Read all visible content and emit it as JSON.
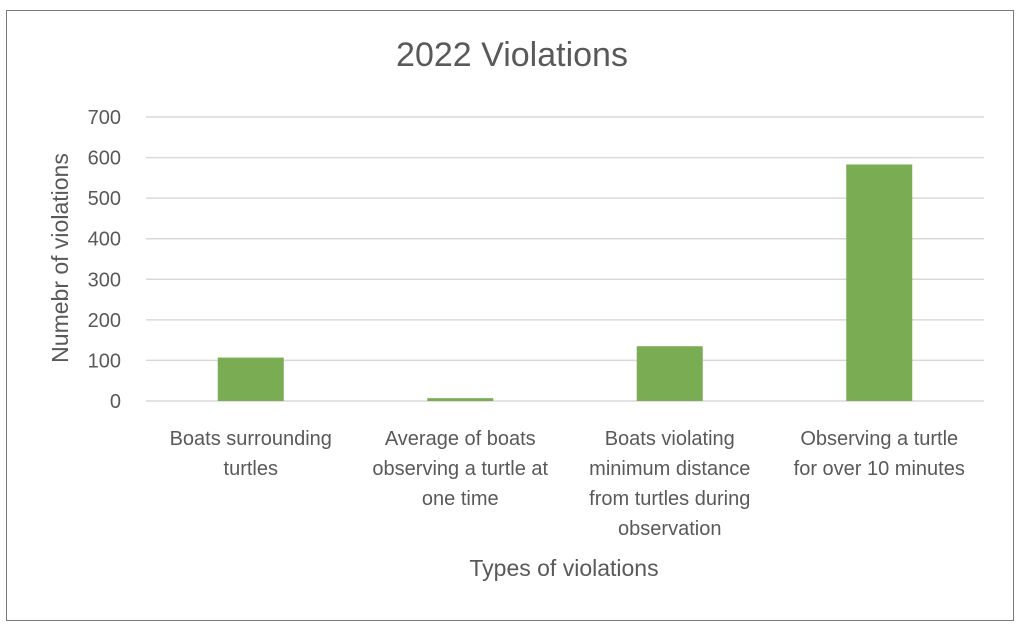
{
  "chart_data": {
    "type": "bar",
    "title": "2022 Violations",
    "xlabel": "Types of violations",
    "ylabel": "Numebr of violations",
    "categories": [
      [
        "Boats surrounding",
        "turtles"
      ],
      [
        "Average of boats",
        "observing a turtle at",
        "one time"
      ],
      [
        "Boats violating",
        "minimum distance",
        "from turtles during",
        "observation"
      ],
      [
        "Observing a turtle",
        "for over 10 minutes"
      ]
    ],
    "values": [
      107,
      7,
      135,
      583
    ],
    "ylim": [
      0,
      700
    ],
    "yticks": [
      0,
      100,
      200,
      300,
      400,
      500,
      600,
      700
    ],
    "grid": true,
    "bar_color": "#7aac53",
    "grid_color": "#d9d9d9"
  }
}
